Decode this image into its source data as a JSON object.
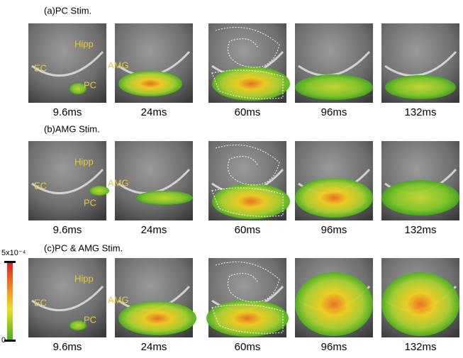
{
  "figure": {
    "rows": [
      {
        "label": "(a)PC Stim.",
        "times": [
          "9.6ms",
          "24ms",
          "60ms",
          "96ms",
          "132ms"
        ]
      },
      {
        "label": "(b)AMG Stim.",
        "times": [
          "9.6ms",
          "24ms",
          "60ms",
          "96ms",
          "132ms"
        ]
      },
      {
        "label": "(c)PC & AMG Stim.",
        "times": [
          "9.6ms",
          "24ms",
          "60ms",
          "96ms",
          "132ms"
        ]
      }
    ],
    "regions": [
      "Hipp",
      "EC",
      "AMG",
      "PC"
    ],
    "colorbar": {
      "max": "5x10⁻⁴",
      "min": "0"
    }
  }
}
